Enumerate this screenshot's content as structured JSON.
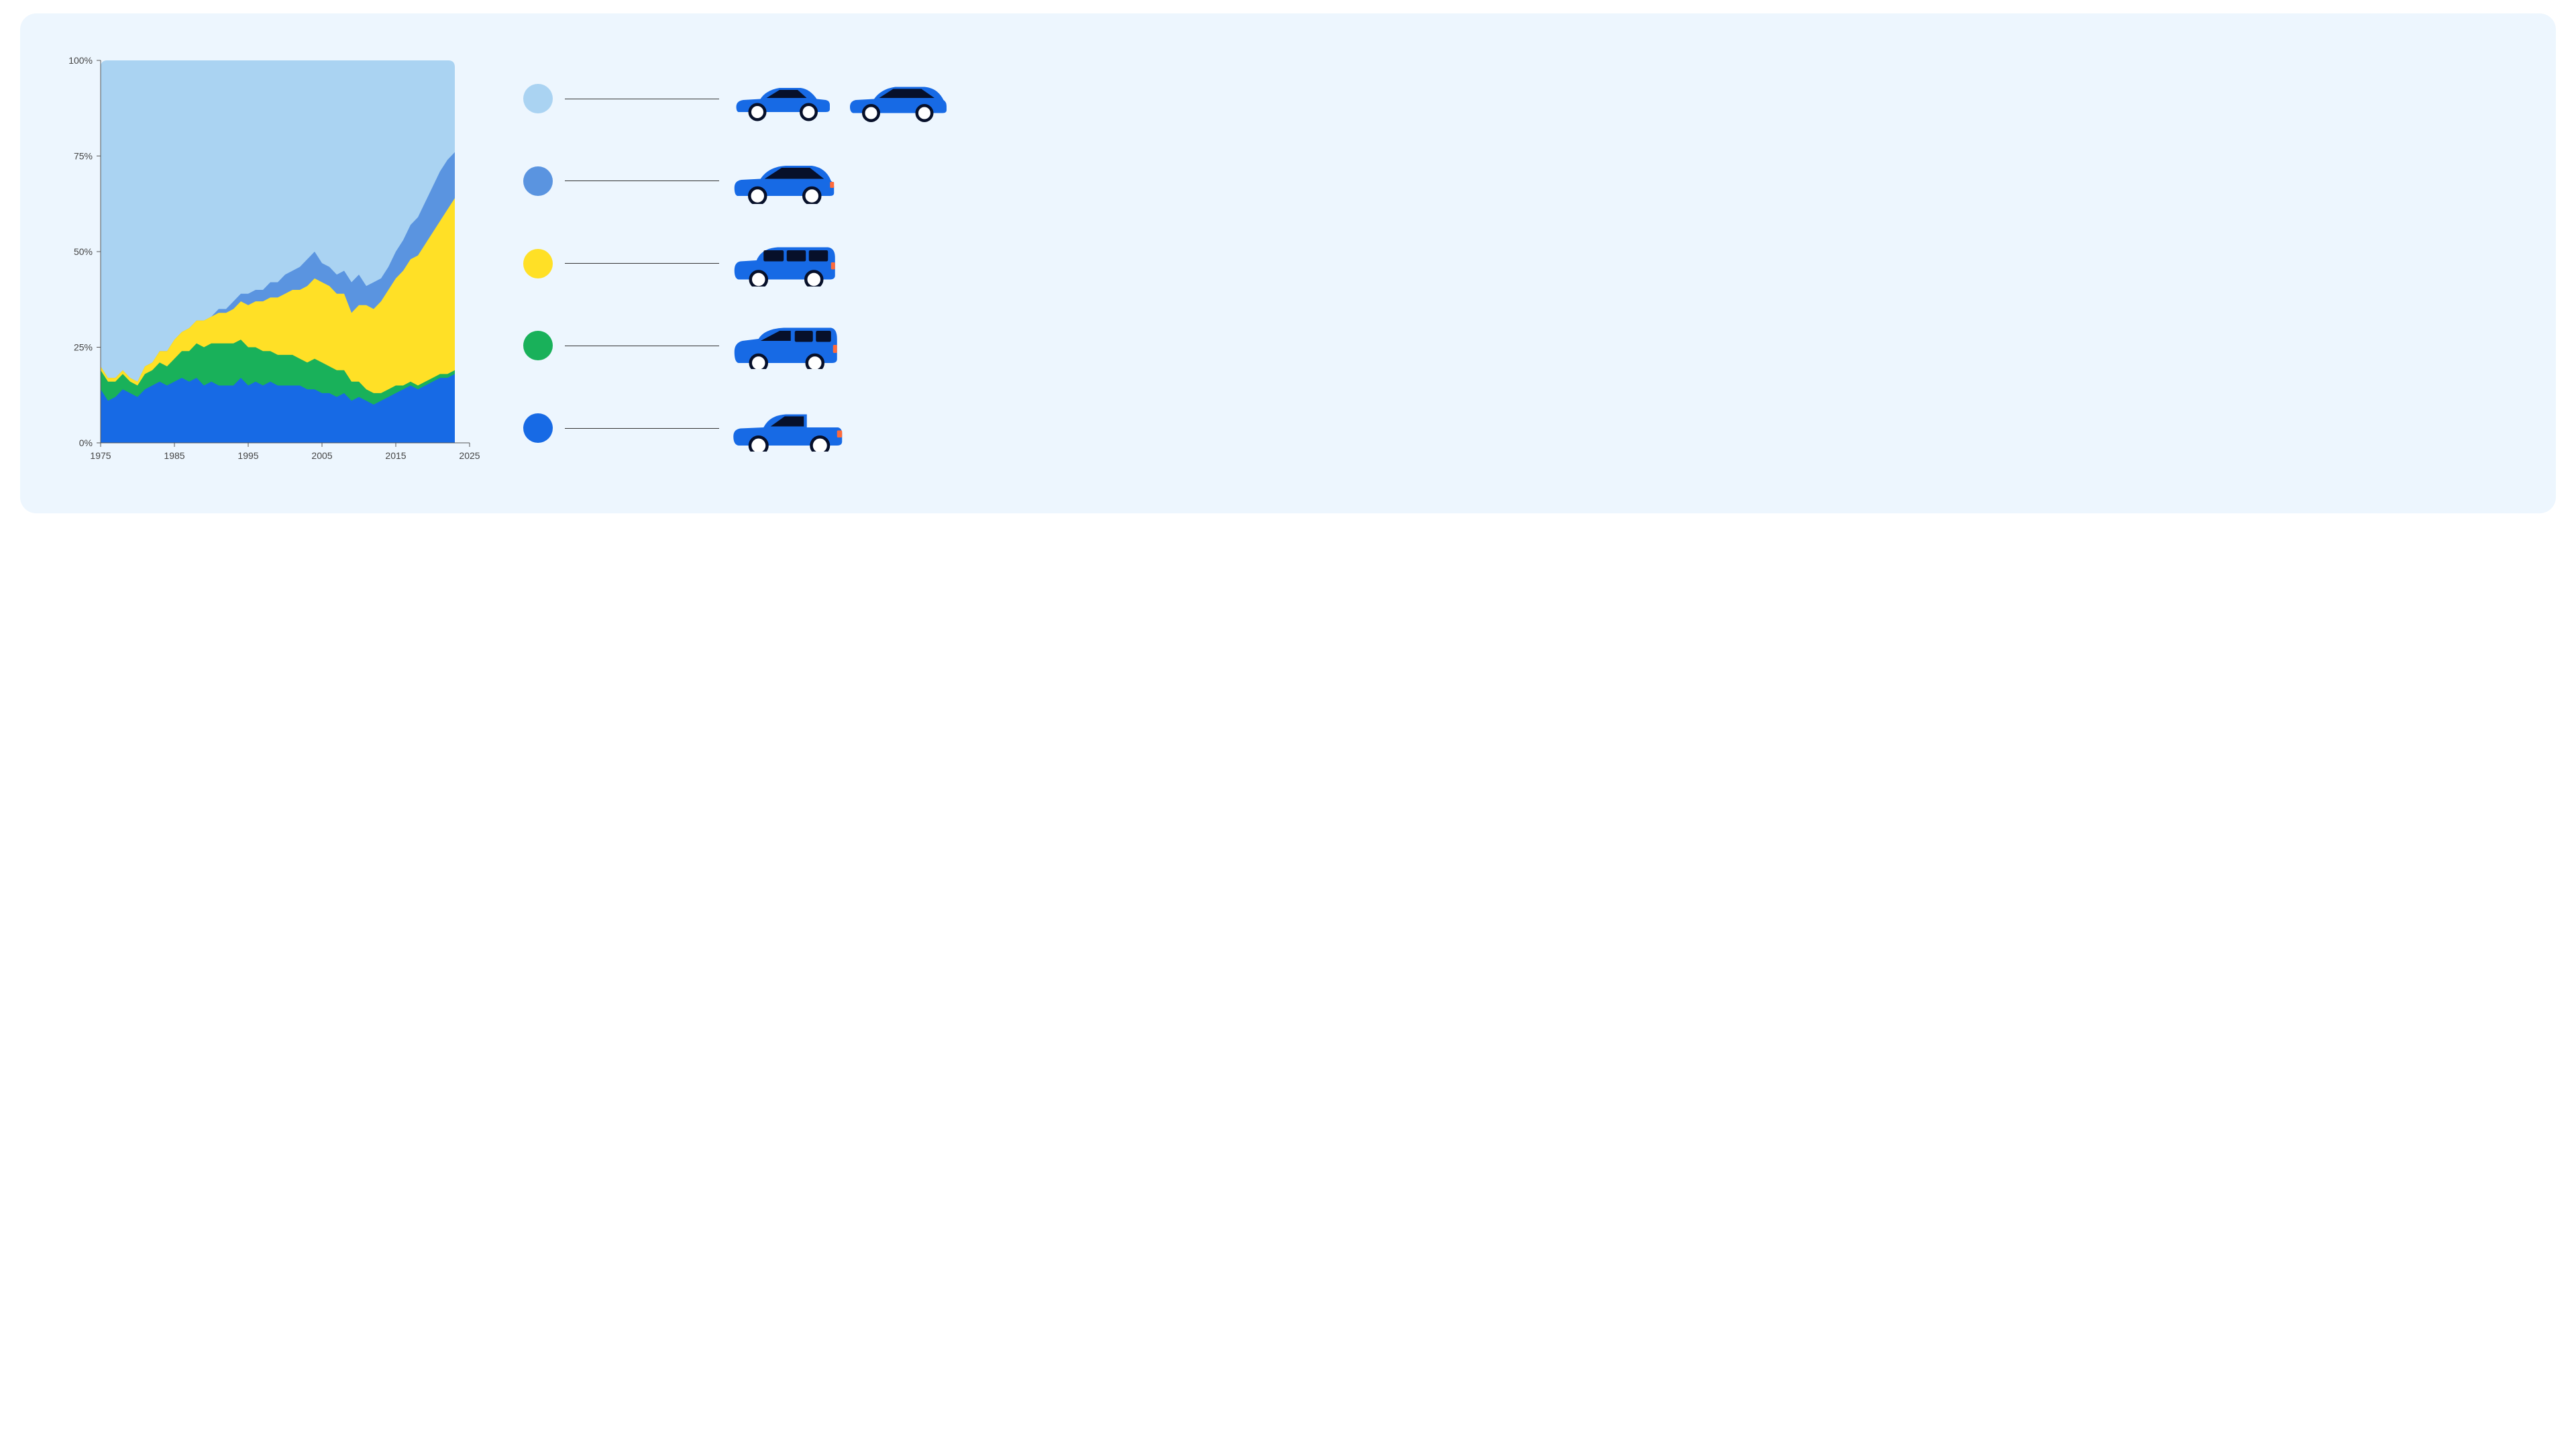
{
  "card": {
    "background_color": "#edf6fe",
    "border_radius": 24
  },
  "chart": {
    "type": "area-stacked-100",
    "xlim": [
      1975,
      2025
    ],
    "ylim": [
      0,
      100
    ],
    "xticks": [
      1975,
      1985,
      1995,
      2005,
      2015,
      2025
    ],
    "xtick_labels": [
      "1975",
      "1985",
      "1995",
      "2005",
      "2015",
      "2025"
    ],
    "yticks": [
      0,
      25,
      50,
      75,
      100
    ],
    "ytick_labels": [
      "0%",
      "25%",
      "50%",
      "75%",
      "100%"
    ],
    "axis_color": "#555555",
    "tick_color": "#555555",
    "label_color": "#444444",
    "label_fontsize": 14,
    "grid": false,
    "plot_background": "#aad3f2",
    "plot_corner_radius_top": 10,
    "years": [
      1975,
      1976,
      1977,
      1978,
      1979,
      1980,
      1981,
      1982,
      1983,
      1984,
      1985,
      1986,
      1987,
      1988,
      1989,
      1990,
      1991,
      1992,
      1993,
      1994,
      1995,
      1996,
      1997,
      1998,
      1999,
      2000,
      2001,
      2002,
      2003,
      2004,
      2005,
      2006,
      2007,
      2008,
      2009,
      2010,
      2011,
      2012,
      2013,
      2014,
      2015,
      2016,
      2017,
      2018,
      2019,
      2020,
      2021,
      2022,
      2023
    ],
    "series": [
      {
        "name": "pickup",
        "color": "#176ae5",
        "values": [
          14,
          11,
          12,
          14,
          13,
          12,
          14,
          15,
          16,
          15,
          16,
          17,
          16,
          17,
          15,
          16,
          15,
          15,
          15,
          17,
          15,
          16,
          15,
          16,
          15,
          15,
          15,
          15,
          14,
          14,
          13,
          13,
          12,
          13,
          11,
          12,
          11,
          10,
          11,
          12,
          13,
          14,
          15,
          14,
          15,
          16,
          17,
          17,
          18
        ]
      },
      {
        "name": "minivan",
        "color": "#19b15a",
        "values": [
          5,
          5,
          4,
          4,
          3,
          3,
          4,
          4,
          5,
          5,
          6,
          7,
          8,
          9,
          10,
          10,
          11,
          11,
          11,
          10,
          10,
          9,
          9,
          8,
          8,
          8,
          8,
          7,
          7,
          8,
          8,
          7,
          7,
          6,
          5,
          4,
          3,
          3,
          2,
          2,
          2,
          1,
          1,
          1,
          1,
          1,
          1,
          1,
          1
        ]
      },
      {
        "name": "truck-suv",
        "color": "#ffe026",
        "values": [
          1,
          1,
          1,
          1,
          1,
          1,
          2,
          2,
          3,
          4,
          5,
          5,
          6,
          6,
          7,
          7,
          8,
          8,
          9,
          10,
          11,
          12,
          13,
          14,
          15,
          16,
          17,
          18,
          20,
          21,
          21,
          21,
          20,
          20,
          18,
          20,
          22,
          22,
          24,
          26,
          28,
          30,
          32,
          34,
          36,
          38,
          40,
          43,
          45
        ]
      },
      {
        "name": "car-suv",
        "color": "#5a94e0",
        "values": [
          0,
          0,
          0,
          0,
          0,
          0,
          0,
          0,
          0,
          0,
          0,
          0,
          0,
          0,
          0,
          0,
          1,
          1,
          2,
          2,
          3,
          3,
          3,
          4,
          4,
          5,
          5,
          6,
          7,
          7,
          5,
          5,
          5,
          6,
          8,
          8,
          5,
          7,
          6,
          6,
          7,
          8,
          9,
          10,
          11,
          12,
          13,
          13,
          12
        ]
      },
      {
        "name": "sedan-wagon",
        "color": "#aad3f2",
        "values": [
          80,
          83,
          83,
          81,
          83,
          84,
          80,
          79,
          76,
          76,
          73,
          71,
          70,
          68,
          68,
          67,
          65,
          65,
          63,
          61,
          61,
          60,
          60,
          58,
          58,
          56,
          55,
          54,
          52,
          50,
          53,
          54,
          56,
          55,
          58,
          56,
          59,
          58,
          57,
          54,
          50,
          47,
          43,
          41,
          37,
          33,
          29,
          26,
          24
        ]
      }
    ]
  },
  "legend": {
    "line_color": "#333333",
    "vehicle_body_color": "#176ae5",
    "vehicle_window_color": "#07102a",
    "wheel_fill": "#ffffff",
    "wheel_stroke": "#07102a",
    "taillight_color": "#ff6a3a",
    "items": [
      {
        "name": "sedan-wagon",
        "swatch_color": "#aad3f2",
        "icons": [
          "sedan",
          "wagon"
        ]
      },
      {
        "name": "car-suv",
        "swatch_color": "#5a94e0",
        "icons": [
          "crossover"
        ]
      },
      {
        "name": "truck-suv",
        "swatch_color": "#ffe026",
        "icons": [
          "suv"
        ]
      },
      {
        "name": "minivan",
        "swatch_color": "#19b15a",
        "icons": [
          "minivan"
        ]
      },
      {
        "name": "pickup",
        "swatch_color": "#176ae5",
        "icons": [
          "pickup"
        ]
      }
    ]
  }
}
